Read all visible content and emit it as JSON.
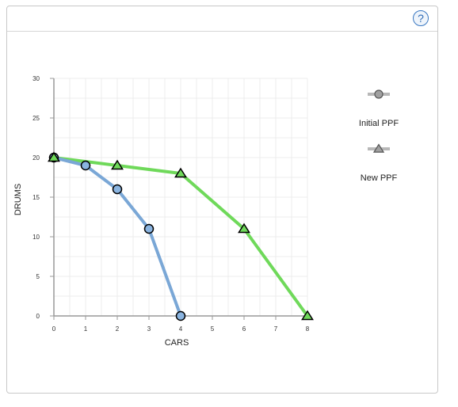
{
  "header": {
    "help_label": "?"
  },
  "chart_data": {
    "type": "line",
    "xlabel": "CARS",
    "ylabel": "DRUMS",
    "xlim": [
      0,
      8
    ],
    "ylim": [
      0,
      30
    ],
    "x_ticks": [
      0,
      1,
      2,
      3,
      4,
      5,
      6,
      7,
      8
    ],
    "y_ticks": [
      0,
      5,
      10,
      15,
      20,
      25,
      30
    ],
    "grid": true,
    "legend_position": "right",
    "series": [
      {
        "name": "Initial PPF",
        "marker": "circle",
        "line_color": "#7aa7d6",
        "marker_fill": "#8ab4e0",
        "points": [
          [
            0,
            20
          ],
          [
            1,
            19
          ],
          [
            2,
            16
          ],
          [
            3,
            11
          ],
          [
            4,
            0
          ]
        ]
      },
      {
        "name": "New PPF",
        "marker": "triangle",
        "line_color": "#6fd95a",
        "marker_fill": "#6fd95a",
        "points": [
          [
            0,
            20
          ],
          [
            2,
            19
          ],
          [
            4,
            18
          ],
          [
            6,
            11
          ],
          [
            8,
            0
          ]
        ]
      }
    ],
    "legend_icon_color": "#a0a0a0"
  }
}
